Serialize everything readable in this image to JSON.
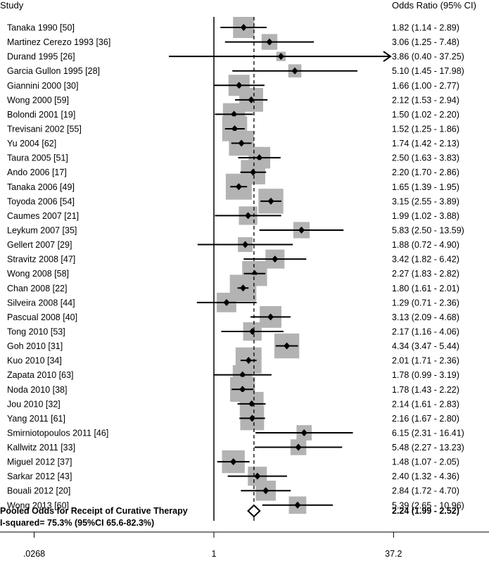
{
  "chart_data": {
    "type": "forest",
    "scale": "log",
    "headers": {
      "left": "Study",
      "right": "Odds Ratio (95% CI)"
    },
    "x_ticks": [
      {
        "value": 0.0268,
        "label": ".0268"
      },
      {
        "value": 1,
        "label": "1"
      },
      {
        "value": 37.2,
        "label": "37.2"
      }
    ],
    "xlim": [
      0.0268,
      37.2
    ],
    "null_line": 1,
    "studies": [
      {
        "label": "Tanaka 1990 [50]",
        "or": 1.82,
        "lo": 1.14,
        "hi": 2.89,
        "ci_text": "1.82 (1.14 - 2.89)",
        "weight": 2.9
      },
      {
        "label": "Martinez Cerezo 1993 [36]",
        "or": 3.06,
        "lo": 1.25,
        "hi": 7.48,
        "ci_text": "3.06 (1.25 - 7.48)",
        "weight": 1.9
      },
      {
        "label": "Durand 1995 [26]",
        "or": 3.86,
        "lo": 0.4,
        "hi": 37.25,
        "ci_text": "3.86 (0.40 - 37.25)",
        "weight": 0.7,
        "arrow_right": true
      },
      {
        "label": "Garcia Gullon 1995 [28]",
        "or": 5.1,
        "lo": 1.45,
        "hi": 17.98,
        "ci_text": "5.10 (1.45 - 17.98)",
        "weight": 1.4
      },
      {
        "label": "Giannini 2000 [30]",
        "or": 1.66,
        "lo": 1.0,
        "hi": 2.77,
        "ci_text": "1.66 (1.00 - 2.77)",
        "weight": 2.9
      },
      {
        "label": "Wong  2000 [59]",
        "or": 2.12,
        "lo": 1.53,
        "hi": 2.94,
        "ci_text": "2.12 (1.53 - 2.94)",
        "weight": 3.4
      },
      {
        "label": "Bolondi 2001 [19]",
        "or": 1.5,
        "lo": 1.02,
        "hi": 2.2,
        "ci_text": "1.50 (1.02 - 2.20)",
        "weight": 3.1
      },
      {
        "label": "Trevisani 2002 [55]",
        "or": 1.52,
        "lo": 1.25,
        "hi": 1.86,
        "ci_text": "1.52 (1.25 - 1.86)",
        "weight": 3.6
      },
      {
        "label": "Yu 2004 [62]",
        "or": 1.74,
        "lo": 1.42,
        "hi": 2.13,
        "ci_text": "1.74 (1.42 - 2.13)",
        "weight": 3.6
      },
      {
        "label": "Taura 2005 [51]",
        "or": 2.5,
        "lo": 1.63,
        "hi": 3.83,
        "ci_text": "2.50 (1.63 - 3.83)",
        "weight": 3.0
      },
      {
        "label": "Ando 2006 [17]",
        "or": 2.2,
        "lo": 1.7,
        "hi": 2.86,
        "ci_text": "2.20 (1.70 - 2.86)",
        "weight": 3.5
      },
      {
        "label": "Tanaka 2006 [49]",
        "or": 1.65,
        "lo": 1.39,
        "hi": 1.95,
        "ci_text": "1.65 (1.39 - 1.95)",
        "weight": 3.8
      },
      {
        "label": "Toyoda 2006 [54]",
        "or": 3.15,
        "lo": 2.55,
        "hi": 3.89,
        "ci_text": "3.15 (2.55 - 3.89)",
        "weight": 3.6
      },
      {
        "label": "Caumes 2007 [21]",
        "or": 1.99,
        "lo": 1.02,
        "hi": 3.88,
        "ci_text": "1.99 (1.02 - 3.88)",
        "weight": 2.4
      },
      {
        "label": "Leykum 2007 [35]",
        "or": 5.83,
        "lo": 2.5,
        "hi": 13.59,
        "ci_text": "5.83 (2.50 - 13.59)",
        "weight": 2.0
      },
      {
        "label": "Gellert 2007 [29]",
        "or": 1.88,
        "lo": 0.72,
        "hi": 4.9,
        "ci_text": "1.88 (0.72 - 4.90)",
        "weight": 1.7
      },
      {
        "label": "Stravitz 2008 [47]",
        "or": 3.42,
        "lo": 1.82,
        "hi": 6.42,
        "ci_text": "3.42 (1.82 - 6.42)",
        "weight": 2.5
      },
      {
        "label": "Wong 2008 [58]",
        "or": 2.27,
        "lo": 1.83,
        "hi": 2.82,
        "ci_text": "2.27 (1.83 - 2.82)",
        "weight": 3.6
      },
      {
        "label": "Chan 2008 [22]",
        "or": 1.8,
        "lo": 1.61,
        "hi": 2.01,
        "ci_text": "1.80 (1.61 - 2.01)",
        "weight": 3.9
      },
      {
        "label": "Silveira 2008 [44]",
        "or": 1.29,
        "lo": 0.71,
        "hi": 2.36,
        "ci_text": "1.29 (0.71 - 2.36)",
        "weight": 2.6
      },
      {
        "label": "Pascual 2008 [40]",
        "or": 3.13,
        "lo": 2.09,
        "hi": 4.68,
        "ci_text": "3.13 (2.09 - 4.68)",
        "weight": 3.0
      },
      {
        "label": "Tong 2010 [53]",
        "or": 2.17,
        "lo": 1.16,
        "hi": 4.06,
        "ci_text": "2.17 (1.16 - 4.06)",
        "weight": 2.4
      },
      {
        "label": "Goh 2010 [31]",
        "or": 4.34,
        "lo": 3.47,
        "hi": 5.44,
        "ci_text": "4.34 (3.47 - 5.44)",
        "weight": 3.6
      },
      {
        "label": "Kuo 2010 [34]",
        "or": 2.01,
        "lo": 1.71,
        "hi": 2.36,
        "ci_text": "2.01 (1.71 - 2.36)",
        "weight": 3.8
      },
      {
        "label": "Zapata 2010 [63]",
        "or": 1.78,
        "lo": 0.99,
        "hi": 3.19,
        "ci_text": "1.78 (0.99 - 3.19)",
        "weight": 2.6
      },
      {
        "label": "Noda 2010 [38]",
        "or": 1.78,
        "lo": 1.43,
        "hi": 2.22,
        "ci_text": "1.78 (1.43 - 2.22)",
        "weight": 3.6
      },
      {
        "label": "Jou 2010 [32]",
        "or": 2.14,
        "lo": 1.61,
        "hi": 2.83,
        "ci_text": "2.14 (1.61 - 2.83)",
        "weight": 3.4
      },
      {
        "label": "Yang 2011 [61]",
        "or": 2.16,
        "lo": 1.67,
        "hi": 2.8,
        "ci_text": "2.16 (1.67 - 2.80)",
        "weight": 3.4
      },
      {
        "label": "Smirniotopoulos 2011 [46]",
        "or": 6.15,
        "lo": 2.31,
        "hi": 16.41,
        "ci_text": "6.15 (2.31 - 16.41)",
        "weight": 1.8
      },
      {
        "label": "Kallwitz 2011 [33]",
        "or": 5.48,
        "lo": 2.27,
        "hi": 13.23,
        "ci_text": "5.48 (2.27 - 13.23)",
        "weight": 1.9
      },
      {
        "label": "Miguel 2012 [37]",
        "or": 1.48,
        "lo": 1.07,
        "hi": 2.05,
        "ci_text": "1.48 (1.07 - 2.05)",
        "weight": 3.2
      },
      {
        "label": "Sarkar 2012 [43]",
        "or": 2.4,
        "lo": 1.32,
        "hi": 4.36,
        "ci_text": "2.40 (1.32 - 4.36)",
        "weight": 2.5
      },
      {
        "label": "Bouali 2012 [20]",
        "or": 2.84,
        "lo": 1.72,
        "hi": 4.7,
        "ci_text": "2.84 (1.72 - 4.70)",
        "weight": 2.7
      },
      {
        "label": "Wong 2013 [60]",
        "or": 5.39,
        "lo": 2.65,
        "hi": 10.96,
        "ci_text": "5.39 (2.65 - 10.96)",
        "weight": 2.2
      }
    ],
    "pooled": {
      "label": "Pooled Odds for Receipt of Curative Therapy",
      "heterogeneity": "I-squared= 75.3% (95%CI 65.6-82.3%)",
      "or": 2.24,
      "lo": 1.99,
      "hi": 2.52,
      "ci_text": "2.24 (1.99 - 2.52)"
    },
    "colors": {
      "box": "#b3b3b3",
      "line": "#000000",
      "diamond_fill": "#ffffff"
    }
  }
}
